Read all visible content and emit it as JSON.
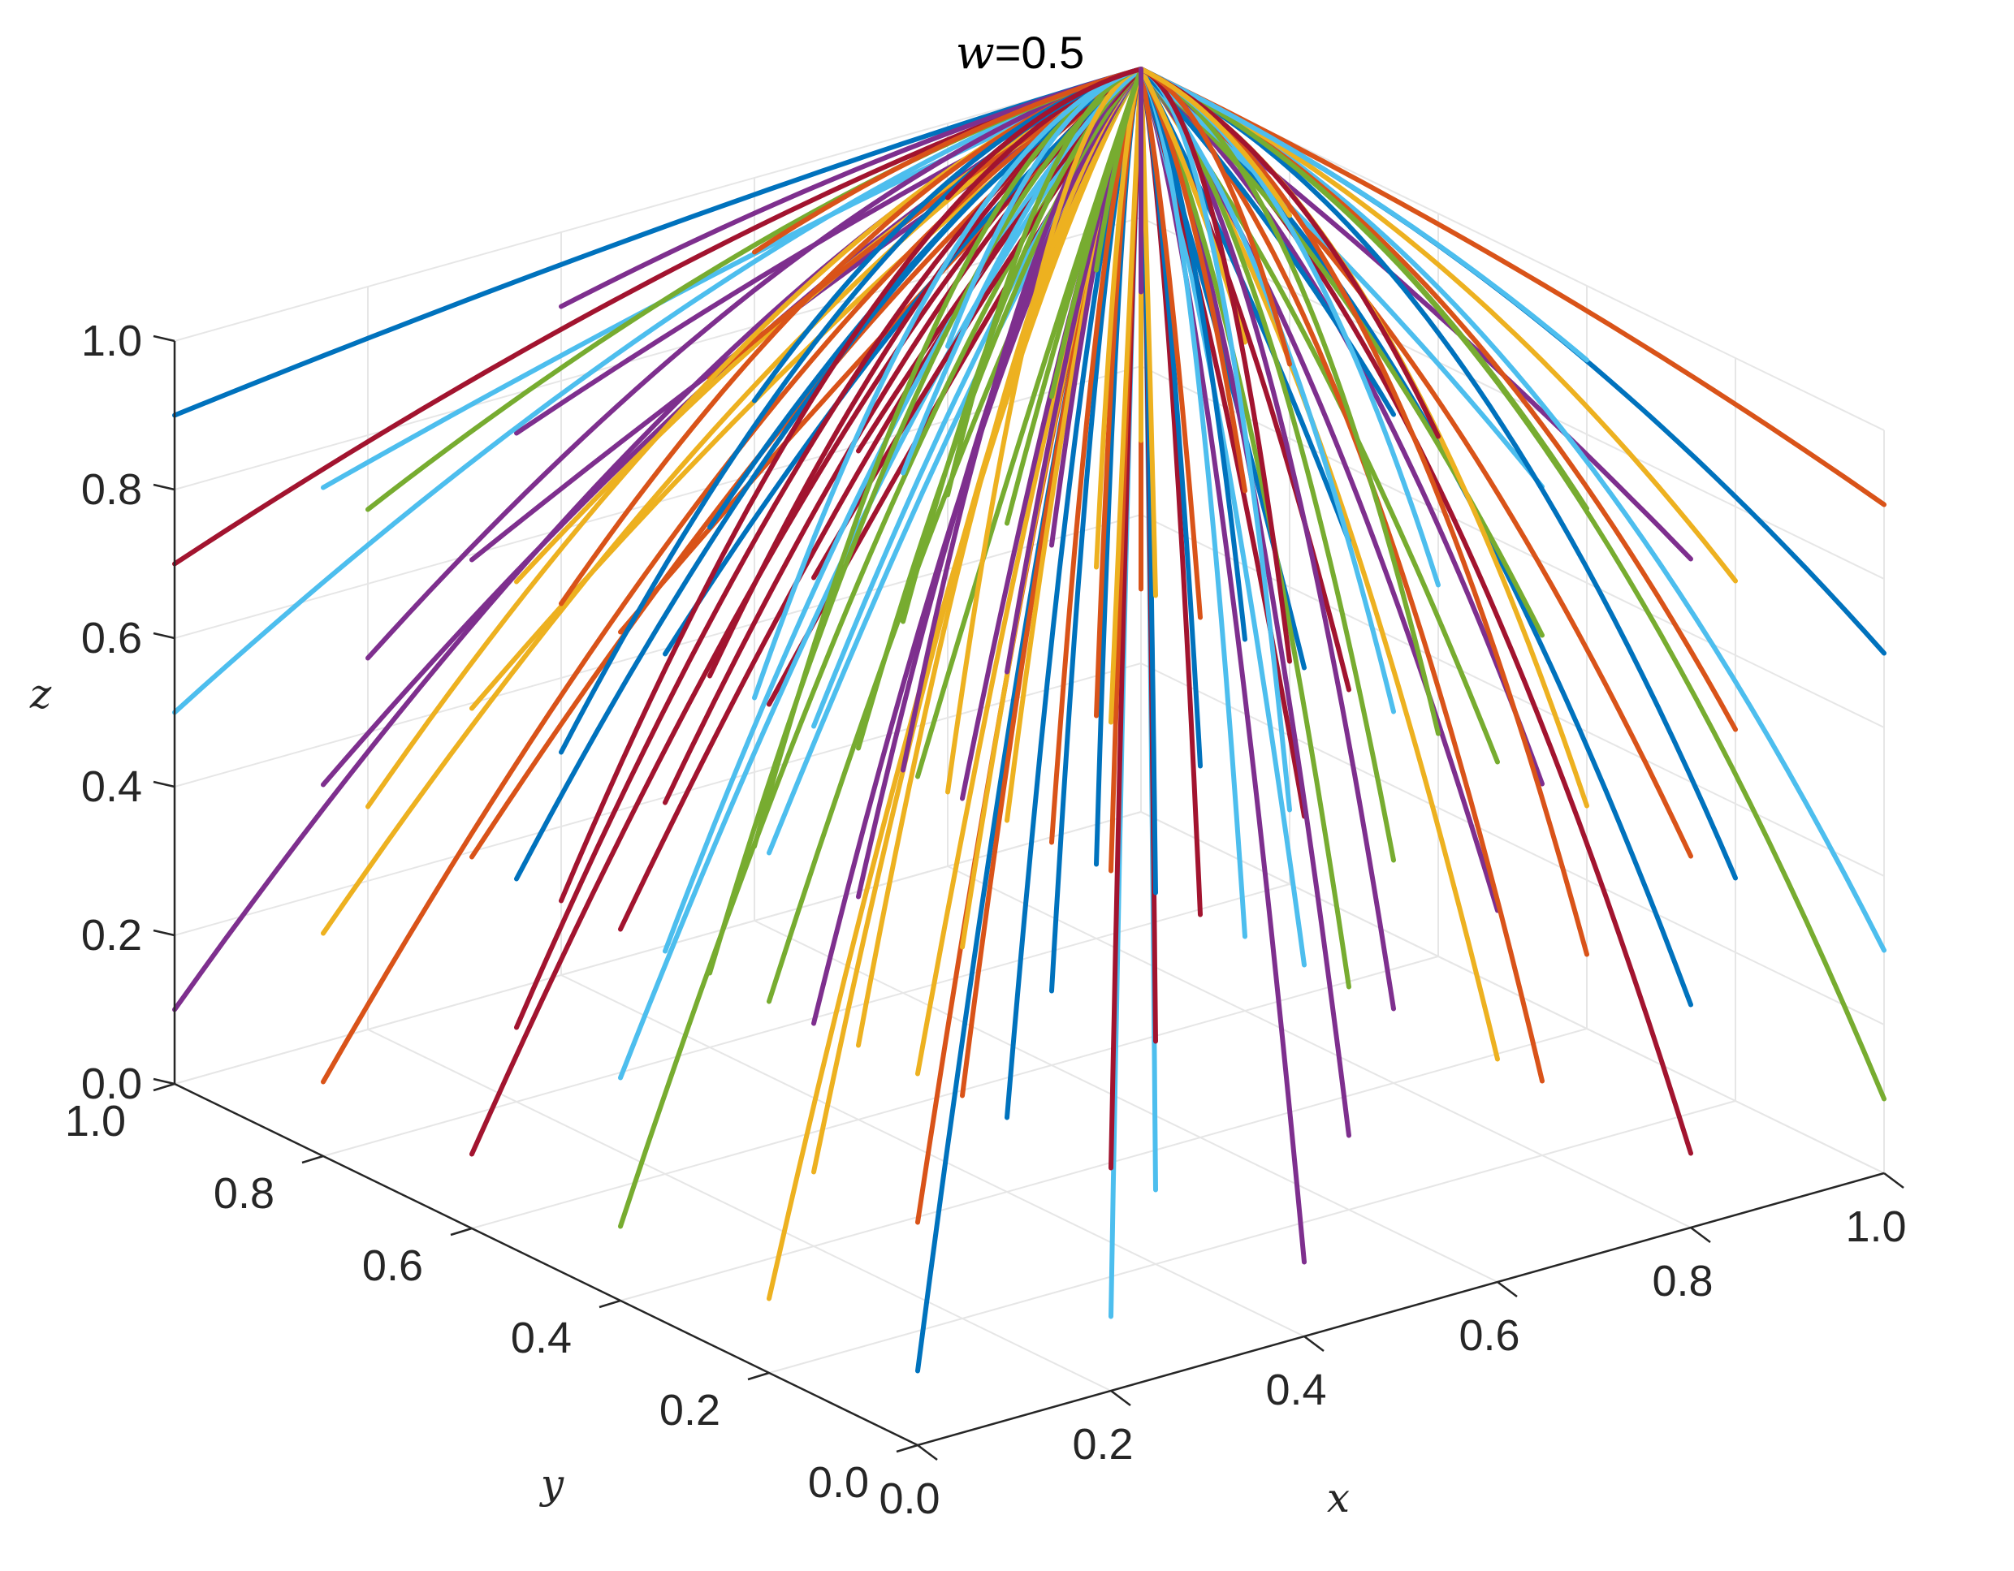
{
  "chart_data": {
    "type": "line",
    "subtype": "3d-trajectories",
    "title": {
      "var": "w",
      "rest": "=0.5"
    },
    "xlabel": "x",
    "ylabel": "y",
    "zlabel": "z",
    "xlim": [
      0,
      1
    ],
    "ylim": [
      0,
      1
    ],
    "zlim": [
      0,
      1
    ],
    "x_ticks": [
      "0.0",
      "0.2",
      "0.4",
      "0.6",
      "0.8",
      "1.0"
    ],
    "y_ticks": [
      "0.0",
      "0.2",
      "0.4",
      "0.6",
      "0.8",
      "1.0"
    ],
    "z_ticks": [
      "0.0",
      "0.2",
      "0.4",
      "0.6",
      "0.8",
      "1.0"
    ],
    "grid": true,
    "convergence_point": [
      1,
      1,
      1
    ],
    "initial_grid": {
      "x": [
        0,
        0.2,
        0.4,
        0.6,
        0.8,
        1.0
      ],
      "y": [
        0,
        0.2,
        0.4,
        0.6,
        0.8,
        1.0
      ],
      "z": [
        0.1,
        0.3,
        0.5,
        0.7,
        0.9
      ]
    },
    "series_colors": [
      "#0072BD",
      "#D95319",
      "#EDB120",
      "#7E2F8E",
      "#77AC30",
      "#4DBEEE",
      "#A2142F"
    ]
  }
}
